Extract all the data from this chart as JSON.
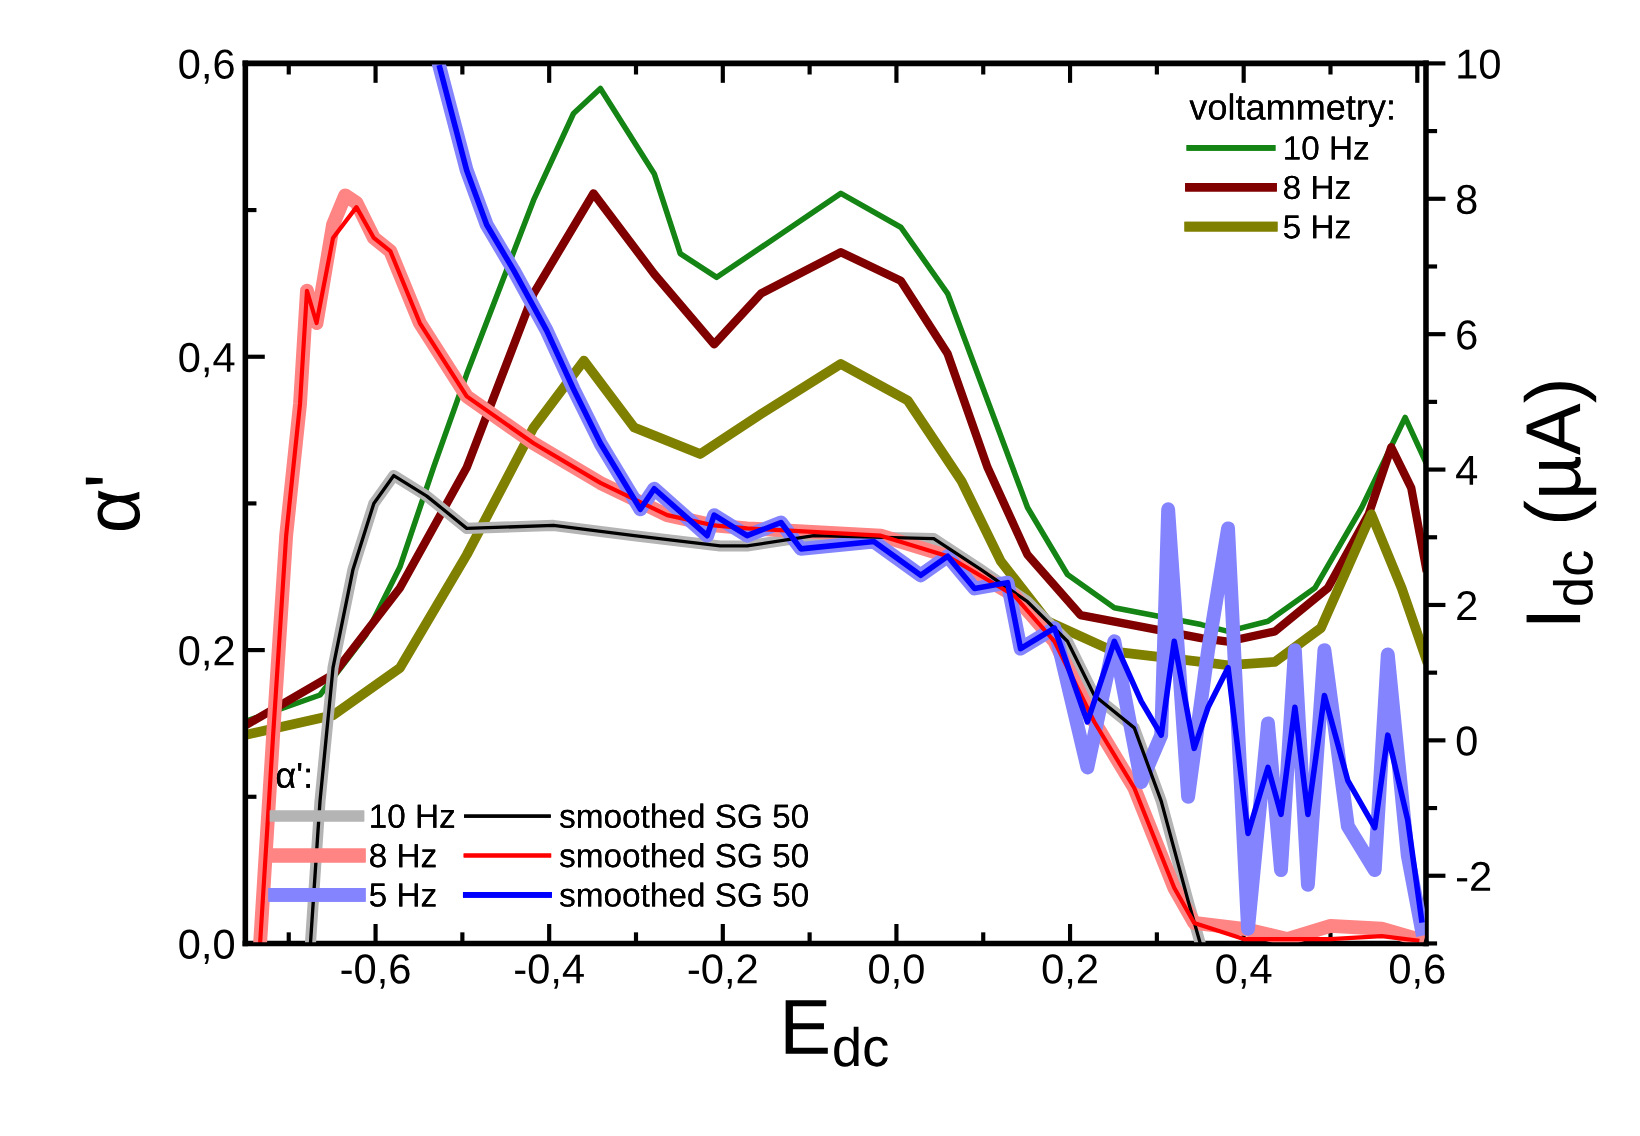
{
  "chart_data": {
    "type": "line",
    "xlabel": "E$_{dc}$",
    "ylabel": "α'",
    "y2label": "I$_{dc}$ (µA)",
    "legend": [
      "bottom left",
      "top right"
    ],
    "legend_title": [
      "α':",
      "voltammetry:"
    ],
    "grid": false,
    "xlim": [
      -0.75,
      0.61
    ],
    "ylim": [
      0,
      0.6
    ],
    "y2lim": [
      -3,
      10
    ],
    "xticks": [
      {
        "value": -0.7,
        "label": null
      },
      {
        "value": -0.6,
        "label": "-0,6"
      },
      {
        "value": -0.5,
        "label": null
      },
      {
        "value": -0.4,
        "label": "-0,4"
      },
      {
        "value": -0.3,
        "label": null
      },
      {
        "value": -0.2,
        "label": "-0,2"
      },
      {
        "value": -0.1,
        "label": null
      },
      {
        "value": 0,
        "label": "0,0"
      },
      {
        "value": 0.1,
        "label": null
      },
      {
        "value": 0.2,
        "label": "0,2"
      },
      {
        "value": 0.3,
        "label": null
      },
      {
        "value": 0.4,
        "label": "0,4"
      },
      {
        "value": 0.5,
        "label": null
      },
      {
        "value": 0.6,
        "label": "0,6"
      }
    ],
    "yticks": [
      {
        "value": 0,
        "label": "0,0"
      },
      {
        "value": 0.1,
        "label": null
      },
      {
        "value": 0.2,
        "label": "0,2"
      },
      {
        "value": 0.3,
        "label": null
      },
      {
        "value": 0.4,
        "label": "0,4"
      },
      {
        "value": 0.5,
        "label": null
      },
      {
        "value": 0.6,
        "label": "0,6"
      }
    ],
    "y2ticks": [
      {
        "value": -3,
        "label": null
      },
      -2,
      {
        "value": -1,
        "label": null
      },
      0,
      {
        "value": 1,
        "label": null
      },
      2,
      {
        "value": 3,
        "label": null
      },
      4,
      {
        "value": 5,
        "label": null
      },
      6,
      {
        "value": 7,
        "label": null
      },
      8,
      {
        "value": 9,
        "label": null
      },
      10
    ],
    "series": [
      {
        "name": "10 Hz",
        "color": "#b4b4b4",
        "x": [
          -0.675,
          -0.664,
          -0.649,
          -0.626,
          -0.602,
          -0.579,
          -0.541,
          -0.495,
          -0.395,
          -0.302,
          -0.203,
          -0.172,
          -0.095,
          0.043,
          0.097,
          0.151,
          0.197,
          0.228,
          0.274,
          0.305,
          0.336,
          0.35
        ],
        "values": [
          0,
          0.097,
          0.188,
          0.255,
          0.3,
          0.319,
          0.305,
          0.283,
          0.285,
          0.278,
          0.271,
          0.271,
          0.278,
          0.276,
          0.255,
          0.233,
          0.206,
          0.169,
          0.147,
          0.097,
          0.029,
          0
        ]
      },
      {
        "name": "8 Hz",
        "color": "#ff8484",
        "x": [
          -0.733,
          -0.718,
          -0.703,
          -0.687,
          -0.679,
          -0.668,
          -0.649,
          -0.635,
          -0.622,
          -0.602,
          -0.583,
          -0.549,
          -0.495,
          -0.418,
          -0.341,
          -0.264,
          -0.21,
          -0.172,
          -0.018,
          0.059,
          0.136,
          0.182,
          0.228,
          0.274,
          0.32,
          0.343,
          0.4,
          0.45,
          0.5,
          0.559,
          0.6
        ],
        "values": [
          0,
          0.142,
          0.278,
          0.368,
          0.445,
          0.423,
          0.49,
          0.51,
          0.505,
          0.481,
          0.472,
          0.423,
          0.373,
          0.341,
          0.314,
          0.292,
          0.285,
          0.283,
          0.278,
          0.264,
          0.237,
          0.206,
          0.151,
          0.106,
          0.038,
          0.014,
          0.01,
          0.003,
          0.012,
          0.01,
          0.003
        ]
      },
      {
        "name": "5 Hz",
        "color": "#8484ff",
        "x": [
          -0.526,
          -0.495,
          -0.472,
          -0.441,
          -0.403,
          -0.372,
          -0.341,
          -0.295,
          -0.279,
          -0.218,
          -0.21,
          -0.172,
          -0.133,
          -0.11,
          -0.026,
          0.028,
          0.059,
          0.09,
          0.128,
          0.143,
          0.182,
          0.22,
          0.251,
          0.282,
          0.305,
          0.313,
          0.336,
          0.359,
          0.382,
          0.405,
          0.428,
          0.443,
          0.459,
          0.474,
          0.493,
          0.52,
          0.551,
          0.566,
          0.589,
          0.605
        ],
        "values": [
          0.597,
          0.527,
          0.49,
          0.459,
          0.418,
          0.378,
          0.341,
          0.296,
          0.31,
          0.278,
          0.292,
          0.278,
          0.287,
          0.269,
          0.274,
          0.251,
          0.264,
          0.242,
          0.246,
          0.201,
          0.215,
          0.12,
          0.206,
          0.11,
          0.142,
          0.296,
          0.1,
          0.2,
          0.283,
          0.01,
          0.15,
          0.05,
          0.2,
          0.04,
          0.2,
          0.08,
          0.05,
          0.197,
          0.06,
          0.01
        ]
      },
      {
        "name": "smoothed SG 50",
        "color": "#000000",
        "x": [
          -0.675,
          -0.664,
          -0.649,
          -0.626,
          -0.602,
          -0.579,
          -0.541,
          -0.495,
          -0.395,
          -0.302,
          -0.203,
          -0.172,
          -0.095,
          0.043,
          0.097,
          0.151,
          0.197,
          0.228,
          0.274,
          0.305,
          0.336,
          0.35
        ],
        "values": [
          0,
          0.097,
          0.188,
          0.255,
          0.3,
          0.319,
          0.305,
          0.283,
          0.285,
          0.278,
          0.271,
          0.271,
          0.278,
          0.276,
          0.255,
          0.233,
          0.206,
          0.169,
          0.147,
          0.097,
          0.029,
          0
        ]
      },
      {
        "name": "smoothed SG 50",
        "color": "#ff0000",
        "x": [
          -0.733,
          -0.718,
          -0.703,
          -0.687,
          -0.679,
          -0.668,
          -0.649,
          -0.622,
          -0.602,
          -0.583,
          -0.549,
          -0.495,
          -0.418,
          -0.341,
          -0.264,
          -0.21,
          -0.172,
          -0.018,
          0.059,
          0.136,
          0.182,
          0.228,
          0.274,
          0.32,
          0.343,
          0.4,
          0.5,
          0.559,
          0.6
        ],
        "values": [
          0,
          0.142,
          0.278,
          0.368,
          0.445,
          0.423,
          0.481,
          0.502,
          0.481,
          0.472,
          0.423,
          0.373,
          0.341,
          0.314,
          0.292,
          0.285,
          0.283,
          0.278,
          0.264,
          0.237,
          0.206,
          0.151,
          0.106,
          0.038,
          0.014,
          0.003,
          0.003,
          0.005,
          0.002
        ]
      },
      {
        "name": "smoothed SG 50",
        "color": "#0000ff",
        "x": [
          -0.526,
          -0.495,
          -0.472,
          -0.441,
          -0.403,
          -0.372,
          -0.341,
          -0.295,
          -0.279,
          -0.218,
          -0.21,
          -0.172,
          -0.133,
          -0.11,
          -0.026,
          0.028,
          0.059,
          0.09,
          0.128,
          0.143,
          0.182,
          0.22,
          0.251,
          0.282,
          0.305,
          0.32,
          0.343,
          0.359,
          0.382,
          0.405,
          0.428,
          0.443,
          0.459,
          0.474,
          0.493,
          0.52,
          0.551,
          0.566,
          0.589,
          0.605
        ],
        "values": [
          0.597,
          0.527,
          0.49,
          0.459,
          0.418,
          0.378,
          0.341,
          0.296,
          0.31,
          0.278,
          0.292,
          0.278,
          0.287,
          0.269,
          0.274,
          0.251,
          0.264,
          0.242,
          0.246,
          0.201,
          0.215,
          0.151,
          0.206,
          0.165,
          0.142,
          0.206,
          0.133,
          0.161,
          0.188,
          0.075,
          0.12,
          0.088,
          0.161,
          0.088,
          0.169,
          0.111,
          0.079,
          0.142,
          0.084,
          0.016
        ]
      },
      {
        "name": "10 Hz",
        "axis": "y2",
        "color": "#148414",
        "x": [
          -0.75,
          -0.664,
          -0.611,
          -0.572,
          -0.533,
          -0.495,
          -0.418,
          -0.372,
          -0.341,
          -0.279,
          -0.249,
          -0.207,
          -0.133,
          -0.064,
          0.005,
          0.059,
          0.105,
          0.151,
          0.197,
          0.251,
          0.351,
          0.382,
          0.428,
          0.482,
          0.536,
          0.586,
          0.609
        ],
        "values": [
          0.28,
          0.67,
          1.56,
          2.56,
          4.04,
          5.41,
          7.98,
          9.26,
          9.63,
          8.37,
          7.19,
          6.84,
          7.48,
          8.08,
          7.58,
          6.6,
          5.02,
          3.44,
          2.45,
          1.96,
          1.71,
          1.61,
          1.76,
          2.25,
          3.44,
          4.77,
          4.13
        ]
      },
      {
        "name": "8 Hz",
        "axis": "y2",
        "color": "#800000",
        "x": [
          -0.75,
          -0.649,
          -0.572,
          -0.495,
          -0.418,
          -0.349,
          -0.279,
          -0.21,
          -0.156,
          -0.064,
          0.005,
          0.059,
          0.105,
          0.151,
          0.212,
          0.351,
          0.382,
          0.436,
          0.497,
          0.544,
          0.57,
          0.593,
          0.61
        ],
        "values": [
          0.22,
          0.97,
          2.25,
          4.03,
          6.6,
          8.08,
          6.89,
          5.85,
          6.6,
          7.21,
          6.79,
          5.71,
          4.03,
          2.74,
          1.85,
          1.51,
          1.46,
          1.61,
          2.25,
          3.34,
          4.33,
          3.73,
          2.55
        ]
      },
      {
        "name": "5 Hz",
        "axis": "y2",
        "color": "#808000",
        "x": [
          -0.75,
          -0.649,
          -0.572,
          -0.495,
          -0.418,
          -0.36,
          -0.302,
          -0.226,
          -0.156,
          -0.064,
          0.013,
          0.075,
          0.12,
          0.174,
          0.251,
          0.351,
          0.382,
          0.436,
          0.489,
          0.547,
          0.582,
          0.61
        ],
        "values": [
          0.08,
          0.37,
          1.07,
          2.74,
          4.62,
          5.61,
          4.62,
          4.23,
          4.82,
          5.56,
          5.02,
          3.83,
          2.65,
          1.76,
          1.31,
          1.16,
          1.11,
          1.16,
          1.66,
          3.34,
          2.25,
          1.21
        ]
      }
    ]
  }
}
